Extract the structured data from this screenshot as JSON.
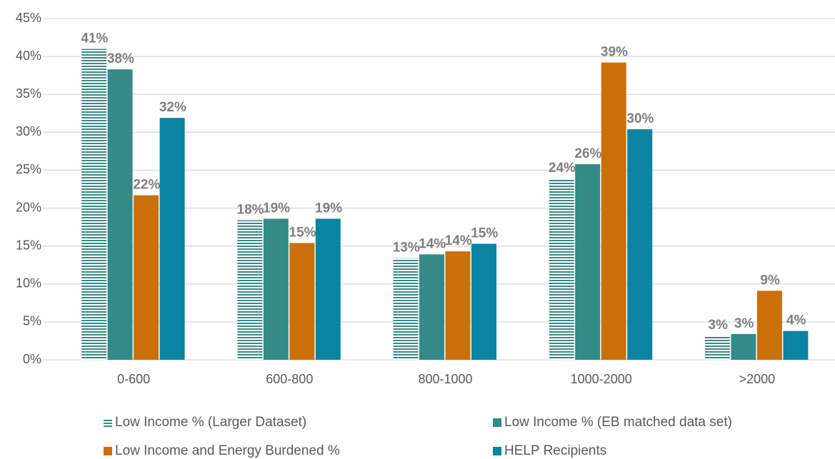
{
  "chart_data": {
    "type": "bar",
    "categories": [
      "0-600",
      "600-800",
      "800-1000",
      "1000-2000",
      ">2000"
    ],
    "series": [
      {
        "name": "Low Income % (Larger Dataset)",
        "color": "#3a8a87",
        "hatch": true,
        "values": [
          41,
          18.4,
          13.4,
          23.9,
          3.2
        ],
        "value_labels": [
          "41%",
          "18%",
          "13%",
          "24%",
          "3%"
        ]
      },
      {
        "name": "Low Income % (EB matched data set)",
        "color": "#338a87",
        "values": [
          38.3,
          18.6,
          13.9,
          25.8,
          3.4
        ],
        "value_labels": [
          "38%",
          "19%",
          "14%",
          "26%",
          "3%"
        ]
      },
      {
        "name": "Low Income and Energy Burdened %",
        "color": "#c9700a",
        "values": [
          21.7,
          15.4,
          14.3,
          39.2,
          9.1
        ],
        "value_labels": [
          "22%",
          "15%",
          "14%",
          "39%",
          "9%"
        ]
      },
      {
        "name": "HELP Recipients",
        "color": "#0a84a3",
        "values": [
          31.9,
          18.6,
          15.3,
          30.4,
          3.8
        ],
        "value_labels": [
          "32%",
          "19%",
          "15%",
          "30%",
          "4%"
        ]
      }
    ],
    "ylim": [
      0,
      45
    ],
    "yticks": [
      {
        "value": 0,
        "label": "0%"
      },
      {
        "value": 5,
        "label": "5%"
      },
      {
        "value": 10,
        "label": "10%"
      },
      {
        "value": 15,
        "label": "15%"
      },
      {
        "value": 20,
        "label": "20%"
      },
      {
        "value": 25,
        "label": "25%"
      },
      {
        "value": 30,
        "label": "30%"
      },
      {
        "value": 35,
        "label": "35%"
      },
      {
        "value": 40,
        "label": "40%"
      },
      {
        "value": 45,
        "label": "45%"
      }
    ],
    "grid": true,
    "legend": "bottom"
  }
}
